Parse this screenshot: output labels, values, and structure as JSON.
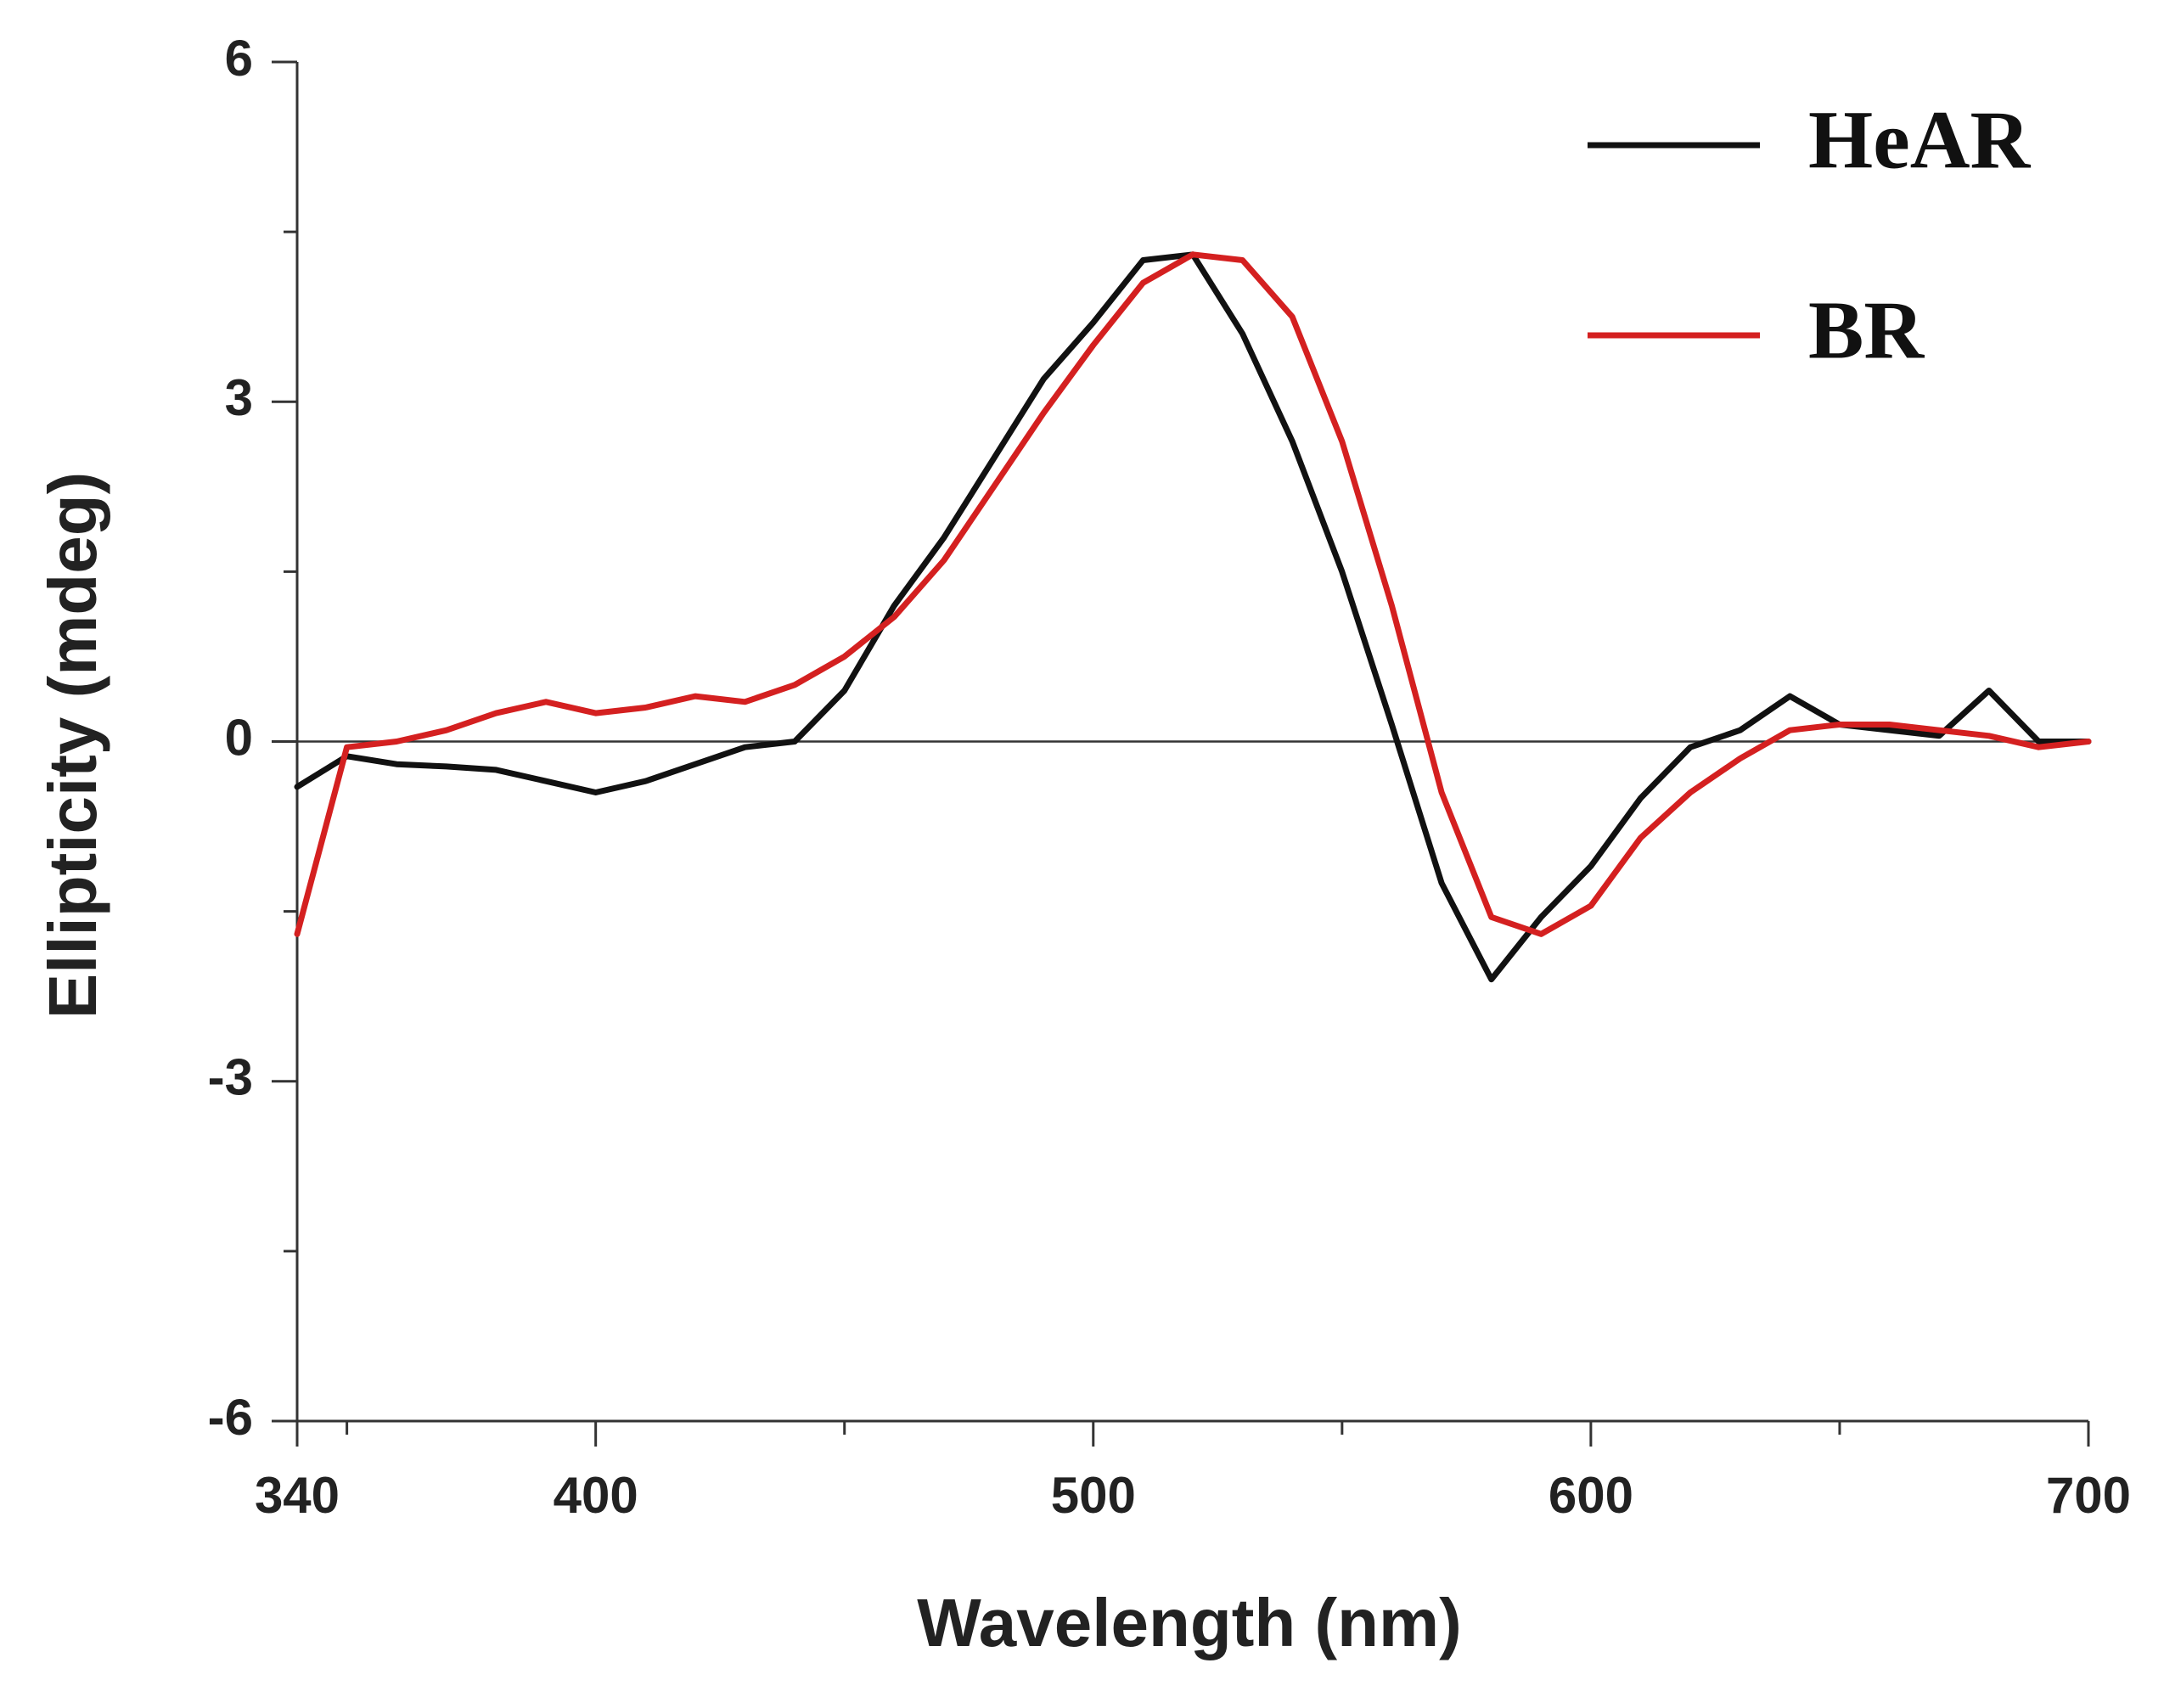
{
  "chart_data": {
    "type": "line",
    "xlabel": "Wavelength (nm)",
    "ylabel": "Ellipticity (mdeg)",
    "x": [
      340,
      350,
      360,
      370,
      380,
      390,
      400,
      410,
      420,
      430,
      440,
      450,
      460,
      470,
      480,
      490,
      500,
      510,
      520,
      530,
      540,
      550,
      560,
      570,
      580,
      590,
      600,
      610,
      620,
      630,
      640,
      650,
      660,
      670,
      680,
      690,
      700
    ],
    "series": [
      {
        "name": "HeAR",
        "color": "#111111",
        "values": [
          -0.4,
          -0.13,
          -0.2,
          -0.22,
          -0.25,
          -0.35,
          -0.45,
          -0.35,
          -0.2,
          -0.05,
          0,
          0.45,
          1.2,
          1.8,
          2.5,
          3.2,
          3.7,
          4.25,
          4.3,
          3.6,
          2.65,
          1.5,
          0.15,
          -1.25,
          -2.1,
          -1.55,
          -1.1,
          -0.5,
          -0.05,
          0.1,
          0.4,
          0.15,
          0.1,
          0.05,
          0.45,
          0,
          0
        ]
      },
      {
        "name": "BR",
        "color": "#d42020",
        "values": [
          -1.7,
          -0.05,
          0,
          0.1,
          0.25,
          0.35,
          0.25,
          0.3,
          0.4,
          0.35,
          0.5,
          0.75,
          1.1,
          1.6,
          2.25,
          2.9,
          3.5,
          4.05,
          4.3,
          4.25,
          3.75,
          2.65,
          1.2,
          -0.45,
          -1.55,
          -1.7,
          -1.45,
          -0.85,
          -0.45,
          -0.15,
          0.1,
          0.15,
          0.15,
          0.1,
          0.05,
          -0.05,
          0
        ]
      }
    ],
    "xlim": [
      340,
      700
    ],
    "xticks": [
      340,
      400,
      500,
      600,
      700
    ],
    "xminorticks": [
      350,
      450,
      550,
      650
    ],
    "ylim": [
      -6,
      6
    ],
    "yticks": [
      -6,
      -3,
      0,
      3,
      6
    ],
    "yminorticks": [
      -4.5,
      -1.5,
      1.5,
      4.5
    ],
    "zeroline": true,
    "grid": false,
    "legend": "top-right"
  }
}
